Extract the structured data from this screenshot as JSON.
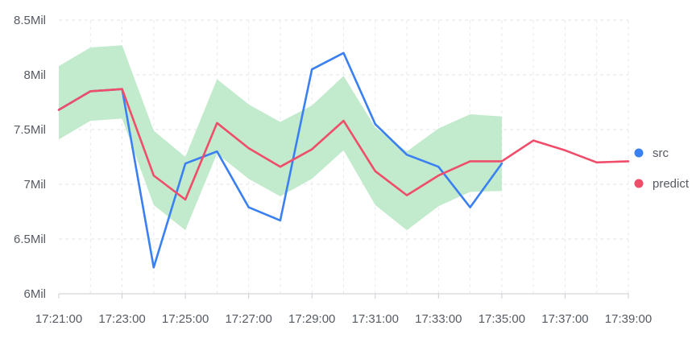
{
  "chart_data": {
    "type": "line",
    "title": "",
    "xlabel": "",
    "ylabel": "",
    "x": [
      "17:21:00",
      "17:22:00",
      "17:23:00",
      "17:24:00",
      "17:25:00",
      "17:26:00",
      "17:27:00",
      "17:28:00",
      "17:29:00",
      "17:30:00",
      "17:31:00",
      "17:32:00",
      "17:33:00",
      "17:34:00",
      "17:35:00",
      "17:36:00",
      "17:37:00",
      "17:38:00",
      "17:39:00"
    ],
    "x_tick_labels": [
      "17:21:00",
      "17:23:00",
      "17:25:00",
      "17:27:00",
      "17:29:00",
      "17:31:00",
      "17:33:00",
      "17:35:00",
      "17:37:00",
      "17:39:00"
    ],
    "y_tick_values": [
      6000000,
      6500000,
      7000000,
      7500000,
      8000000,
      8500000
    ],
    "y_tick_labels": [
      "6Mil",
      "6.5Mil",
      "7Mil",
      "7.5Mil",
      "8Mil",
      "8.5Mil"
    ],
    "ylim": [
      6000000,
      8500000
    ],
    "grid": true,
    "legend_position": "right",
    "series": [
      {
        "name": "src",
        "color": "#3a80f2",
        "values": [
          7680000,
          7850000,
          7870000,
          6240000,
          7190000,
          7300000,
          6790000,
          6670000,
          8050000,
          8200000,
          7550000,
          7270000,
          7160000,
          6790000,
          7190000,
          null,
          null,
          null,
          null
        ]
      },
      {
        "name": "predict",
        "color": "#ef4d6a",
        "values": [
          7680000,
          7850000,
          7870000,
          7080000,
          6860000,
          7560000,
          7330000,
          7160000,
          7320000,
          7580000,
          7120000,
          6900000,
          7080000,
          7210000,
          7210000,
          7400000,
          7310000,
          7200000,
          7210000
        ]
      }
    ],
    "band": {
      "color": "#bfe9c9",
      "upper": [
        8080000,
        8250000,
        8270000,
        7490000,
        7250000,
        7960000,
        7730000,
        7570000,
        7720000,
        7990000,
        7520000,
        7300000,
        7510000,
        7640000,
        7620000
      ],
      "lower": [
        7410000,
        7580000,
        7600000,
        6810000,
        6580000,
        7280000,
        7050000,
        6890000,
        7050000,
        7310000,
        6810000,
        6580000,
        6800000,
        6930000,
        6940000
      ]
    }
  }
}
